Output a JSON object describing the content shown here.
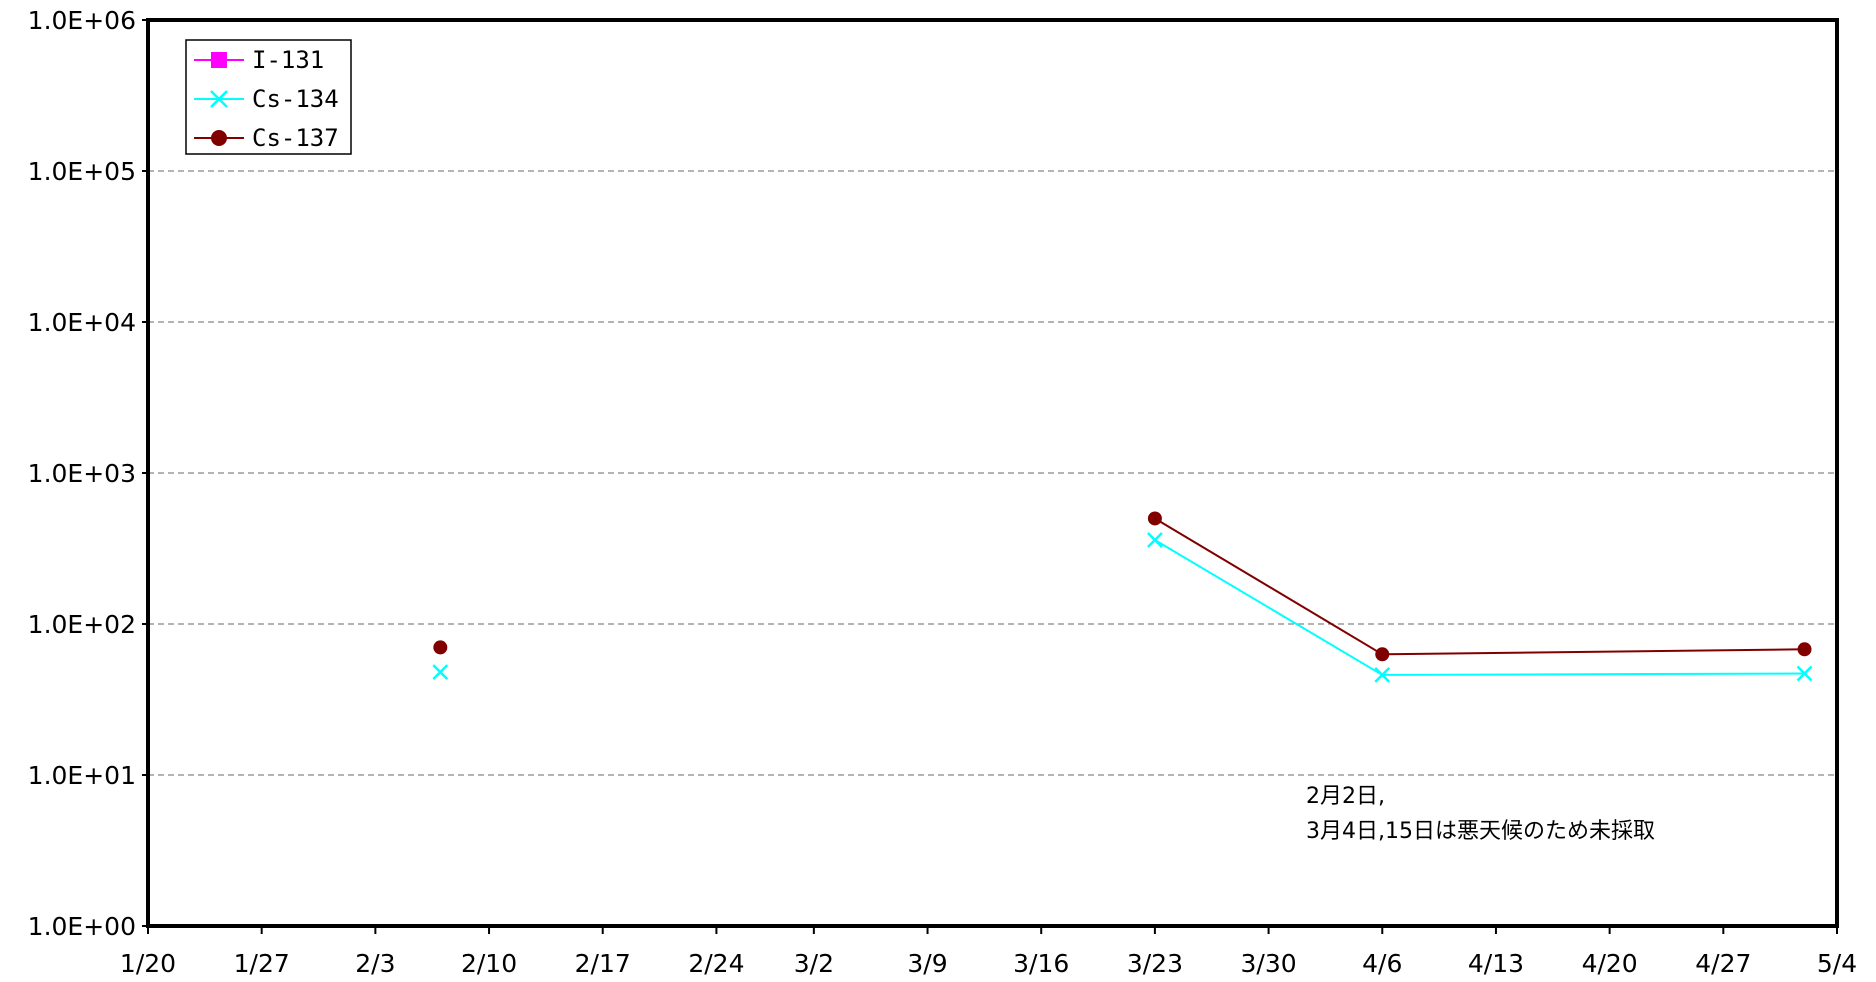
{
  "chart_data": {
    "type": "line",
    "title": "",
    "xlabel": "",
    "ylabel": "",
    "y_scale": "log",
    "ylim": [
      1,
      1000000
    ],
    "xlim": [
      "1/20",
      "5/4"
    ],
    "grid": "horizontal dashed",
    "legend_position": "top-left",
    "x_tick_labels": [
      "1/20",
      "1/27",
      "2/3",
      "2/10",
      "2/17",
      "2/24",
      "3/2",
      "3/9",
      "3/16",
      "3/23",
      "3/30",
      "4/6",
      "4/13",
      "4/20",
      "4/27",
      "5/4"
    ],
    "y_tick_labels": [
      "1.0E+00",
      "1.0E+01",
      "1.0E+02",
      "1.0E+03",
      "1.0E+04",
      "1.0E+05",
      "1.0E+06"
    ],
    "series": [
      {
        "name": "I-131",
        "color": "#ff00ff",
        "marker": "square",
        "points": []
      },
      {
        "name": "Cs-134",
        "color": "#00ffff",
        "marker": "x",
        "points": [
          {
            "x": "2/7",
            "y": 48
          },
          {
            "x": "3/23",
            "y": 360
          },
          {
            "x": "4/6",
            "y": 46
          },
          {
            "x": "5/2",
            "y": 47
          }
        ]
      },
      {
        "name": "Cs-137",
        "color": "#800000",
        "marker": "circle",
        "points": [
          {
            "x": "2/7",
            "y": 70
          },
          {
            "x": "3/23",
            "y": 500
          },
          {
            "x": "4/6",
            "y": 63
          },
          {
            "x": "5/2",
            "y": 68
          }
        ]
      }
    ],
    "segments_broken_after": [
      "2/7"
    ],
    "annotation": {
      "line1": "2月2日,",
      "line2": "3月4日,15日は悪天候のため未採取"
    }
  }
}
